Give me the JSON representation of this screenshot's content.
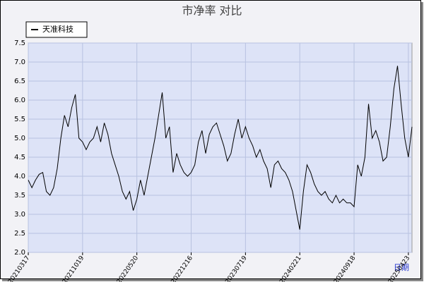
{
  "chart_data": {
    "type": "line",
    "title": "市净率  对比",
    "x_label": "日期",
    "categories": [
      "20210317",
      null,
      null,
      null,
      null,
      null,
      null,
      null,
      null,
      null,
      null,
      null,
      null,
      null,
      null,
      "20211019",
      null,
      null,
      null,
      null,
      null,
      null,
      null,
      null,
      null,
      null,
      null,
      null,
      null,
      null,
      "20220520",
      null,
      null,
      null,
      null,
      null,
      null,
      null,
      null,
      null,
      null,
      null,
      null,
      null,
      null,
      "20221216",
      null,
      null,
      null,
      null,
      null,
      null,
      null,
      null,
      null,
      null,
      null,
      null,
      null,
      null,
      "20230719",
      null,
      null,
      null,
      null,
      null,
      null,
      null,
      null,
      null,
      null,
      null,
      null,
      null,
      null,
      "20240221",
      null,
      null,
      null,
      null,
      null,
      null,
      null,
      null,
      null,
      null,
      null,
      null,
      null,
      null,
      "20240918",
      null,
      null,
      null,
      null,
      null,
      null,
      null,
      null,
      null,
      null,
      null,
      null,
      null,
      null,
      "20250423",
      null
    ],
    "series": [
      {
        "name": "天准科技",
        "color": "#000000",
        "values": [
          3.9,
          3.7,
          3.9,
          4.05,
          4.1,
          3.6,
          3.5,
          3.7,
          4.2,
          5.0,
          5.6,
          5.3,
          5.8,
          6.15,
          5.0,
          4.9,
          4.7,
          4.9,
          5.0,
          5.3,
          4.9,
          5.4,
          5.1,
          4.6,
          4.3,
          4.0,
          3.6,
          3.4,
          3.6,
          3.1,
          3.4,
          3.9,
          3.5,
          4.0,
          4.5,
          5.0,
          5.6,
          6.2,
          5.0,
          5.3,
          4.1,
          4.6,
          4.3,
          4.1,
          4.0,
          4.1,
          4.3,
          4.9,
          5.2,
          4.6,
          5.1,
          5.3,
          5.4,
          5.1,
          4.8,
          4.4,
          4.6,
          5.1,
          5.5,
          5.0,
          5.3,
          5.0,
          4.8,
          4.5,
          4.7,
          4.4,
          4.2,
          3.7,
          4.3,
          4.4,
          4.2,
          4.1,
          3.9,
          3.6,
          3.1,
          2.6,
          3.6,
          4.3,
          4.1,
          3.8,
          3.6,
          3.5,
          3.6,
          3.4,
          3.3,
          3.5,
          3.3,
          3.4,
          3.3,
          3.3,
          3.2,
          4.3,
          4.0,
          4.5,
          5.9,
          5.0,
          5.2,
          4.9,
          4.4,
          4.5,
          5.3,
          6.3,
          6.9,
          5.9,
          5.0,
          4.5,
          5.3
        ]
      }
    ],
    "ylim": [
      2,
      7.5
    ],
    "yticks": [
      {
        "value": 2,
        "label": "2.0"
      },
      2.5,
      {
        "value": 3,
        "label": "3.0"
      },
      3.5,
      {
        "value": 4,
        "label": "4.0"
      },
      4.5,
      {
        "value": 5,
        "label": "5.0"
      },
      5.5,
      {
        "value": 6,
        "label": "6.0"
      },
      6.5,
      {
        "value": 7,
        "label": "7.0"
      },
      7.5
    ],
    "grid": true
  }
}
